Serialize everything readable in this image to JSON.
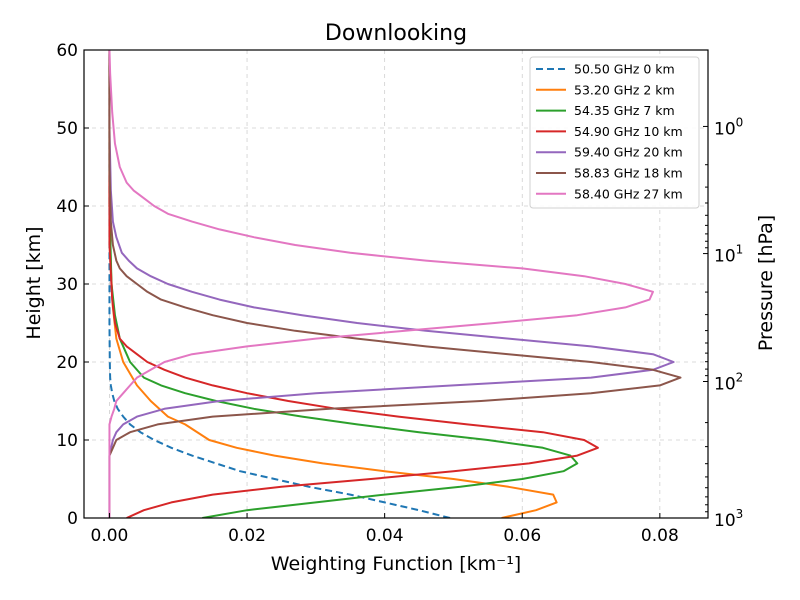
{
  "chart_data": {
    "type": "line",
    "title": "Downlooking",
    "xlabel": "Weighting Function [km⁻¹]",
    "ylabel": "Height [km]",
    "y2label": "Pressure [hPa]",
    "xlim": [
      -0.0037,
      0.087
    ],
    "ylim": [
      0,
      60
    ],
    "x_ticks": [
      0.0,
      0.02,
      0.04,
      0.06,
      0.08
    ],
    "x_tick_labels": [
      "0.00",
      "0.02",
      "0.04",
      "0.06",
      "0.08"
    ],
    "y_ticks": [
      0,
      10,
      20,
      30,
      40,
      50,
      60
    ],
    "y_tick_labels": [
      "0",
      "10",
      "20",
      "30",
      "40",
      "50",
      "60"
    ],
    "y2_scale": "log",
    "y2_ticks": [
      {
        "height": 50.2,
        "base": "10",
        "exp": "0"
      },
      {
        "height": 33.9,
        "base": "10",
        "exp": "1"
      },
      {
        "height": 17.5,
        "base": "10",
        "exp": "2"
      },
      {
        "height": 0,
        "base": "10",
        "exp": "3"
      }
    ],
    "grid": true,
    "legend_position": "upper-right",
    "series": [
      {
        "name": "50.50 GHz 0 km",
        "color": "#1f77b4",
        "dashed": true,
        "points": [
          [
            0.0495,
            0
          ],
          [
            0.045,
            1
          ],
          [
            0.04,
            2
          ],
          [
            0.035,
            3
          ],
          [
            0.029,
            4
          ],
          [
            0.024,
            5
          ],
          [
            0.019,
            6
          ],
          [
            0.0155,
            7
          ],
          [
            0.012,
            8
          ],
          [
            0.009,
            9
          ],
          [
            0.0065,
            10
          ],
          [
            0.0045,
            11
          ],
          [
            0.003,
            12
          ],
          [
            0.002,
            13
          ],
          [
            0.0012,
            14
          ],
          [
            0.0007,
            15
          ],
          [
            0.0004,
            16
          ],
          [
            0.0002,
            17
          ],
          [
            0.0001,
            18
          ],
          [
            5e-05,
            20
          ],
          [
            0.0,
            25
          ],
          [
            0.0,
            30
          ],
          [
            0.0,
            40
          ],
          [
            0.0,
            60
          ]
        ]
      },
      {
        "name": "53.20 GHz 2 km",
        "color": "#ff7f0e",
        "dashed": false,
        "points": [
          [
            0.057,
            0
          ],
          [
            0.062,
            1
          ],
          [
            0.065,
            2
          ],
          [
            0.0645,
            3
          ],
          [
            0.058,
            4
          ],
          [
            0.05,
            5
          ],
          [
            0.04,
            6
          ],
          [
            0.031,
            7
          ],
          [
            0.024,
            8
          ],
          [
            0.0185,
            9
          ],
          [
            0.0145,
            10
          ],
          [
            0.011,
            12
          ],
          [
            0.0085,
            13
          ],
          [
            0.006,
            15
          ],
          [
            0.004,
            17
          ],
          [
            0.002,
            20
          ],
          [
            0.001,
            23
          ],
          [
            0.0005,
            27
          ],
          [
            0.0002,
            32
          ],
          [
            0.0,
            40
          ],
          [
            0.0,
            60
          ]
        ]
      },
      {
        "name": "54.35 GHz 7 km",
        "color": "#2ca02c",
        "dashed": false,
        "points": [
          [
            0.0135,
            0
          ],
          [
            0.02,
            1
          ],
          [
            0.03,
            2
          ],
          [
            0.04,
            3
          ],
          [
            0.051,
            4
          ],
          [
            0.06,
            5
          ],
          [
            0.066,
            6
          ],
          [
            0.068,
            7
          ],
          [
            0.067,
            8
          ],
          [
            0.063,
            9
          ],
          [
            0.055,
            10
          ],
          [
            0.045,
            11
          ],
          [
            0.036,
            12
          ],
          [
            0.028,
            13
          ],
          [
            0.021,
            14
          ],
          [
            0.0155,
            15
          ],
          [
            0.011,
            16
          ],
          [
            0.0075,
            17
          ],
          [
            0.005,
            18
          ],
          [
            0.003,
            20
          ],
          [
            0.0015,
            23
          ],
          [
            0.0008,
            26
          ],
          [
            0.0003,
            30
          ],
          [
            0.0,
            40
          ],
          [
            0.0,
            60
          ]
        ]
      },
      {
        "name": "54.90 GHz 10 km",
        "color": "#d62728",
        "dashed": false,
        "points": [
          [
            0.0025,
            0
          ],
          [
            0.005,
            1
          ],
          [
            0.009,
            2
          ],
          [
            0.015,
            3
          ],
          [
            0.025,
            4
          ],
          [
            0.038,
            5
          ],
          [
            0.05,
            6
          ],
          [
            0.061,
            7
          ],
          [
            0.068,
            8
          ],
          [
            0.071,
            9
          ],
          [
            0.069,
            10
          ],
          [
            0.063,
            11
          ],
          [
            0.052,
            12
          ],
          [
            0.042,
            13
          ],
          [
            0.033,
            14
          ],
          [
            0.026,
            15
          ],
          [
            0.02,
            16
          ],
          [
            0.015,
            17
          ],
          [
            0.011,
            18
          ],
          [
            0.008,
            19
          ],
          [
            0.0055,
            20
          ],
          [
            0.004,
            21
          ],
          [
            0.0025,
            22
          ],
          [
            0.0015,
            23
          ],
          [
            0.0008,
            25
          ],
          [
            0.0004,
            28
          ],
          [
            0.0,
            35
          ],
          [
            0.0,
            60
          ]
        ]
      },
      {
        "name": "59.40 GHz 20 km",
        "color": "#9467bd",
        "dashed": false,
        "points": [
          [
            0.0,
            0
          ],
          [
            0.0,
            5
          ],
          [
            0.0,
            8
          ],
          [
            0.0005,
            10
          ],
          [
            0.001,
            11
          ],
          [
            0.002,
            12
          ],
          [
            0.004,
            13
          ],
          [
            0.008,
            14
          ],
          [
            0.016,
            15
          ],
          [
            0.03,
            16
          ],
          [
            0.05,
            17
          ],
          [
            0.07,
            18
          ],
          [
            0.079,
            19
          ],
          [
            0.082,
            20
          ],
          [
            0.079,
            21
          ],
          [
            0.07,
            22
          ],
          [
            0.058,
            23
          ],
          [
            0.046,
            24
          ],
          [
            0.036,
            25
          ],
          [
            0.028,
            26
          ],
          [
            0.021,
            27
          ],
          [
            0.016,
            28
          ],
          [
            0.012,
            29
          ],
          [
            0.0085,
            30
          ],
          [
            0.006,
            31
          ],
          [
            0.004,
            32
          ],
          [
            0.0028,
            33
          ],
          [
            0.0018,
            34
          ],
          [
            0.001,
            36
          ],
          [
            0.0005,
            38
          ],
          [
            0.0002,
            42
          ],
          [
            0.0,
            50
          ],
          [
            0.0,
            60
          ]
        ]
      },
      {
        "name": "58.83 GHz 18 km",
        "color": "#8c564b",
        "dashed": false,
        "points": [
          [
            0.0,
            0
          ],
          [
            0.0,
            5
          ],
          [
            0.0,
            8
          ],
          [
            0.0005,
            9
          ],
          [
            0.001,
            10
          ],
          [
            0.003,
            11
          ],
          [
            0.007,
            12
          ],
          [
            0.015,
            13
          ],
          [
            0.032,
            14
          ],
          [
            0.054,
            15
          ],
          [
            0.07,
            16
          ],
          [
            0.08,
            17
          ],
          [
            0.083,
            18
          ],
          [
            0.079,
            19
          ],
          [
            0.07,
            20
          ],
          [
            0.058,
            21
          ],
          [
            0.046,
            22
          ],
          [
            0.036,
            23
          ],
          [
            0.027,
            24
          ],
          [
            0.02,
            25
          ],
          [
            0.015,
            26
          ],
          [
            0.011,
            27
          ],
          [
            0.0075,
            28
          ],
          [
            0.0055,
            29
          ],
          [
            0.004,
            30
          ],
          [
            0.0025,
            31
          ],
          [
            0.0015,
            32
          ],
          [
            0.001,
            33
          ],
          [
            0.0005,
            35
          ],
          [
            0.0002,
            38
          ],
          [
            0.0,
            45
          ],
          [
            0.0,
            60
          ]
        ]
      },
      {
        "name": "58.40 GHz 27 km",
        "color": "#e377c2",
        "dashed": false,
        "points": [
          [
            0.0,
            0
          ],
          [
            0.0,
            5
          ],
          [
            0.0,
            10
          ],
          [
            0.0,
            12
          ],
          [
            0.0003,
            13
          ],
          [
            0.0007,
            14
          ],
          [
            0.001,
            15
          ],
          [
            0.002,
            16
          ],
          [
            0.003,
            17
          ],
          [
            0.004,
            18
          ],
          [
            0.006,
            19
          ],
          [
            0.008,
            20
          ],
          [
            0.012,
            21
          ],
          [
            0.02,
            22
          ],
          [
            0.03,
            23
          ],
          [
            0.043,
            24
          ],
          [
            0.056,
            25
          ],
          [
            0.068,
            26
          ],
          [
            0.075,
            27
          ],
          [
            0.0785,
            28
          ],
          [
            0.079,
            29
          ],
          [
            0.075,
            30
          ],
          [
            0.069,
            31
          ],
          [
            0.06,
            32
          ],
          [
            0.046,
            33
          ],
          [
            0.035,
            34
          ],
          [
            0.027,
            35
          ],
          [
            0.021,
            36
          ],
          [
            0.016,
            37
          ],
          [
            0.012,
            38
          ],
          [
            0.0085,
            39
          ],
          [
            0.0065,
            40
          ],
          [
            0.005,
            41
          ],
          [
            0.0035,
            42
          ],
          [
            0.0025,
            43
          ],
          [
            0.0015,
            45
          ],
          [
            0.0008,
            48
          ],
          [
            0.0004,
            52
          ],
          [
            0.0001,
            57
          ],
          [
            0.0,
            60
          ]
        ]
      }
    ]
  }
}
